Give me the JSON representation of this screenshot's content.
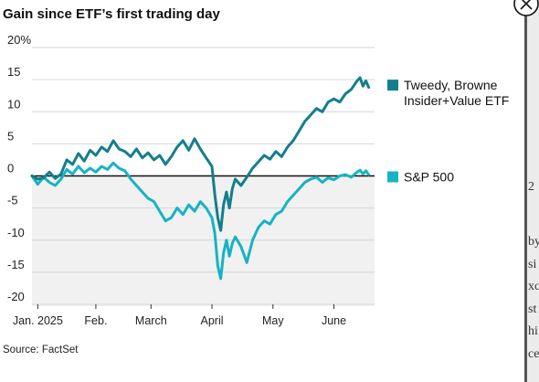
{
  "chart_data": {
    "type": "line",
    "title": "Gain since ETF’s first trading day",
    "source": "Source: FactSet",
    "ylim": [
      -22,
      22
    ],
    "yticks": [
      {
        "value": 20,
        "label": "20%"
      },
      {
        "value": 15,
        "label": "15"
      },
      {
        "value": 10,
        "label": "10"
      },
      {
        "value": 5,
        "label": "5"
      },
      {
        "value": 0,
        "label": "0"
      },
      {
        "value": -5,
        "label": "-5"
      },
      {
        "value": -10,
        "label": "-10"
      },
      {
        "value": -15,
        "label": "-15"
      },
      {
        "value": -20,
        "label": "-20"
      }
    ],
    "xlim": [
      0,
      118
    ],
    "xticks": [
      {
        "value": 2,
        "label": "Jan. 2025"
      },
      {
        "value": 22,
        "label": "Feb."
      },
      {
        "value": 41,
        "label": "March"
      },
      {
        "value": 62,
        "label": "April"
      },
      {
        "value": 83,
        "label": "May"
      },
      {
        "value": 104,
        "label": "June"
      }
    ],
    "grid": true,
    "legend": "right",
    "series": [
      {
        "name": "Tweedy, Browne Insider+Value ETF",
        "legend_lines": [
          "Tweedy, Browne",
          "Insider+Value ETF"
        ],
        "color": "#137f8c",
        "values": [
          [
            0,
            0.0
          ],
          [
            2,
            -0.5
          ],
          [
            4,
            -0.3
          ],
          [
            6,
            0.6
          ],
          [
            8,
            -0.4
          ],
          [
            10,
            0.3
          ],
          [
            12,
            2.5
          ],
          [
            14,
            1.8
          ],
          [
            16,
            3.5
          ],
          [
            18,
            2.3
          ],
          [
            20,
            4.0
          ],
          [
            22,
            3.2
          ],
          [
            24,
            4.5
          ],
          [
            26,
            3.8
          ],
          [
            28,
            5.5
          ],
          [
            30,
            4.2
          ],
          [
            32,
            3.8
          ],
          [
            34,
            3.0
          ],
          [
            36,
            4.2
          ],
          [
            38,
            2.8
          ],
          [
            40,
            3.6
          ],
          [
            42,
            2.5
          ],
          [
            44,
            3.2
          ],
          [
            46,
            1.8
          ],
          [
            48,
            3.0
          ],
          [
            50,
            4.5
          ],
          [
            52,
            5.5
          ],
          [
            54,
            4.0
          ],
          [
            56,
            5.8
          ],
          [
            58,
            4.2
          ],
          [
            60,
            2.8
          ],
          [
            62,
            1.5
          ],
          [
            63,
            -3.0
          ],
          [
            64,
            -6.5
          ],
          [
            65,
            -8.5
          ],
          [
            66,
            -4.5
          ],
          [
            67,
            -2.5
          ],
          [
            68,
            -5.0
          ],
          [
            69,
            -2.0
          ],
          [
            70,
            -0.5
          ],
          [
            72,
            -1.5
          ],
          [
            74,
            -0.2
          ],
          [
            76,
            1.2
          ],
          [
            78,
            2.2
          ],
          [
            80,
            3.2
          ],
          [
            82,
            2.6
          ],
          [
            84,
            3.8
          ],
          [
            86,
            3.0
          ],
          [
            88,
            4.5
          ],
          [
            90,
            5.5
          ],
          [
            92,
            7.0
          ],
          [
            94,
            8.5
          ],
          [
            96,
            9.5
          ],
          [
            98,
            10.5
          ],
          [
            100,
            10.0
          ],
          [
            102,
            11.5
          ],
          [
            104,
            12.0
          ],
          [
            106,
            11.5
          ],
          [
            108,
            12.8
          ],
          [
            110,
            13.5
          ],
          [
            112,
            14.8
          ],
          [
            113,
            15.3
          ],
          [
            114,
            14.0
          ],
          [
            115,
            14.8
          ],
          [
            116,
            13.8
          ]
        ]
      },
      {
        "name": "S&P 500",
        "legend_lines": [
          "S&P 500"
        ],
        "color": "#16b3c3",
        "values": [
          [
            0,
            0.0
          ],
          [
            2,
            -1.3
          ],
          [
            4,
            -0.2
          ],
          [
            6,
            -1.0
          ],
          [
            8,
            -1.5
          ],
          [
            10,
            -0.5
          ],
          [
            12,
            1.0
          ],
          [
            14,
            0.3
          ],
          [
            16,
            1.5
          ],
          [
            18,
            0.5
          ],
          [
            20,
            1.2
          ],
          [
            22,
            0.6
          ],
          [
            24,
            1.5
          ],
          [
            26,
            1.0
          ],
          [
            28,
            2.0
          ],
          [
            30,
            1.2
          ],
          [
            32,
            0.8
          ],
          [
            34,
            -0.5
          ],
          [
            36,
            -1.5
          ],
          [
            38,
            -2.5
          ],
          [
            40,
            -3.5
          ],
          [
            42,
            -4.0
          ],
          [
            44,
            -5.5
          ],
          [
            46,
            -7.0
          ],
          [
            48,
            -6.5
          ],
          [
            50,
            -5.0
          ],
          [
            52,
            -6.0
          ],
          [
            54,
            -4.5
          ],
          [
            56,
            -5.5
          ],
          [
            58,
            -4.0
          ],
          [
            60,
            -5.0
          ],
          [
            62,
            -6.5
          ],
          [
            63,
            -9.0
          ],
          [
            64,
            -14.0
          ],
          [
            65,
            -16.0
          ],
          [
            66,
            -12.0
          ],
          [
            67,
            -10.0
          ],
          [
            68,
            -12.5
          ],
          [
            69,
            -10.5
          ],
          [
            70,
            -9.5
          ],
          [
            72,
            -11.0
          ],
          [
            74,
            -13.5
          ],
          [
            76,
            -10.0
          ],
          [
            78,
            -8.0
          ],
          [
            80,
            -7.0
          ],
          [
            82,
            -7.5
          ],
          [
            84,
            -6.0
          ],
          [
            86,
            -5.5
          ],
          [
            88,
            -4.0
          ],
          [
            90,
            -3.0
          ],
          [
            92,
            -2.0
          ],
          [
            94,
            -1.0
          ],
          [
            96,
            -0.5
          ],
          [
            98,
            -0.2
          ],
          [
            100,
            -1.0
          ],
          [
            102,
            -0.3
          ],
          [
            104,
            -0.6
          ],
          [
            106,
            0.0
          ],
          [
            108,
            0.2
          ],
          [
            110,
            -0.2
          ],
          [
            112,
            0.6
          ],
          [
            113,
            0.9
          ],
          [
            114,
            0.3
          ],
          [
            115,
            0.8
          ],
          [
            116,
            0.2
          ]
        ]
      }
    ]
  },
  "background_text": [
    "2",
    "by",
    "si",
    "xc",
    "st",
    "hi",
    "ce"
  ],
  "close_icon": "close-icon"
}
